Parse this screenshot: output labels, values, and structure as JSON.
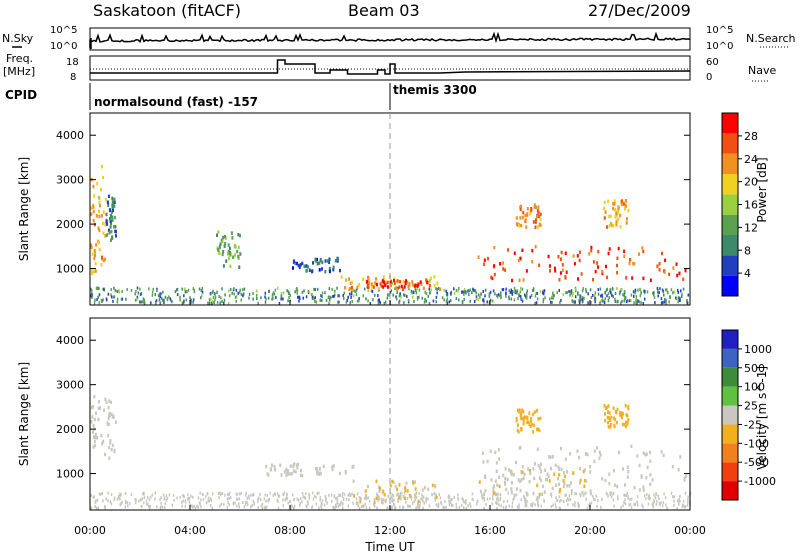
{
  "header": {
    "station": "Saskatoon (fitACF)",
    "beam": "Beam 03",
    "date": "27/Dec/2009"
  },
  "left_labels": {
    "nsky": "N.Sky",
    "freq_line1": "Freq.",
    "freq_line2": "[MHz]",
    "cpid": "CPID"
  },
  "right_labels": {
    "nsearch": "N.Search",
    "nave": "Nave"
  },
  "mini_axes": {
    "nsky_top": "10^5",
    "nsky_bottom": "10^0",
    "nsearch_top": "10^5",
    "nsearch_bottom": "10^0",
    "freq_top": "18",
    "freq_bottom": "8",
    "nave_top": "60",
    "nave_bottom": "0"
  },
  "cpid": {
    "left": "normalsound (fast) -157",
    "right": "themis 3300"
  },
  "x_axis": {
    "label": "Time UT",
    "ticks": [
      "00:00",
      "04:00",
      "08:00",
      "12:00",
      "16:00",
      "20:00",
      "00:00"
    ]
  },
  "colors": {
    "power_scale": [
      "#0000ff",
      "#2040c0",
      "#3d8a6a",
      "#5aa050",
      "#9ad040",
      "#f0d020",
      "#f09020",
      "#f05010",
      "#ff0000"
    ],
    "velocity_scale": [
      "#2020c0",
      "#3c64c0",
      "#3c8c3c",
      "#60c040",
      "#c8c8c0",
      "#f0b020",
      "#f08020",
      "#f04010",
      "#e00000"
    ]
  },
  "chart_data": [
    {
      "type": "heatmap",
      "title": "Power",
      "ylabel": "Slant Range [km]",
      "xlabel": "",
      "x_range_hours": [
        0,
        24
      ],
      "ylim": [
        180,
        4500
      ],
      "y_ticks": [
        "1000",
        "2000",
        "3000",
        "4000"
      ],
      "colorbar": {
        "label": "Power [dB]",
        "ticks": [
          "28",
          "24",
          "20",
          "16",
          "12",
          "8",
          "4"
        ],
        "range": [
          0,
          30
        ]
      },
      "regions": [
        {
          "t0": 0.0,
          "t1": 0.6,
          "r0": 800,
          "r1": 3300,
          "level": 20
        },
        {
          "t0": 0.6,
          "t1": 1.0,
          "r0": 1600,
          "r1": 2600,
          "level": 8
        },
        {
          "t0": 5.0,
          "t1": 6.0,
          "r0": 1000,
          "r1": 1800,
          "level": 12
        },
        {
          "t0": 8.0,
          "t1": 10.0,
          "r0": 900,
          "r1": 1200,
          "level": 6
        },
        {
          "t0": 10.0,
          "t1": 14.0,
          "r0": 500,
          "r1": 800,
          "level": 20
        },
        {
          "t0": 11.0,
          "t1": 13.5,
          "r0": 550,
          "r1": 700,
          "level": 26
        },
        {
          "t0": 15.5,
          "t1": 24.0,
          "r0": 700,
          "r1": 1500,
          "level": 26
        },
        {
          "t0": 17.0,
          "t1": 18.0,
          "r0": 1900,
          "r1": 2400,
          "level": 22
        },
        {
          "t0": 20.5,
          "t1": 21.5,
          "r0": 1900,
          "r1": 2500,
          "level": 20
        }
      ]
    },
    {
      "type": "heatmap",
      "title": "Velocity",
      "ylabel": "Slant Range [km]",
      "xlabel": "Time UT",
      "x_range_hours": [
        0,
        24
      ],
      "ylim": [
        180,
        4500
      ],
      "y_ticks": [
        "1000",
        "2000",
        "3000",
        "4000"
      ],
      "colorbar": {
        "label": "Velocity [m s^-1]",
        "ticks": [
          "1000",
          "500",
          "100",
          "25",
          "-25",
          "-100",
          "-500",
          "-1000"
        ],
        "range": [
          -1500,
          1500
        ]
      },
      "regions": [
        {
          "t0": 0.0,
          "t1": 1.0,
          "r0": 1300,
          "r1": 2700,
          "level": 0
        },
        {
          "t0": 7.0,
          "t1": 10.5,
          "r0": 900,
          "r1": 1200,
          "level": 0
        },
        {
          "t0": 10.5,
          "t1": 14.0,
          "r0": 200,
          "r1": 800,
          "level": -150
        },
        {
          "t0": 15.5,
          "t1": 24.0,
          "r0": 500,
          "r1": 1600,
          "level": 0
        },
        {
          "t0": 15.5,
          "t1": 20.0,
          "r0": 500,
          "r1": 1100,
          "level": -150
        },
        {
          "t0": 17.0,
          "t1": 18.0,
          "r0": 1900,
          "r1": 2400,
          "level": -300
        },
        {
          "t0": 20.5,
          "t1": 21.5,
          "r0": 2000,
          "r1": 2500,
          "level": -300
        }
      ]
    }
  ]
}
